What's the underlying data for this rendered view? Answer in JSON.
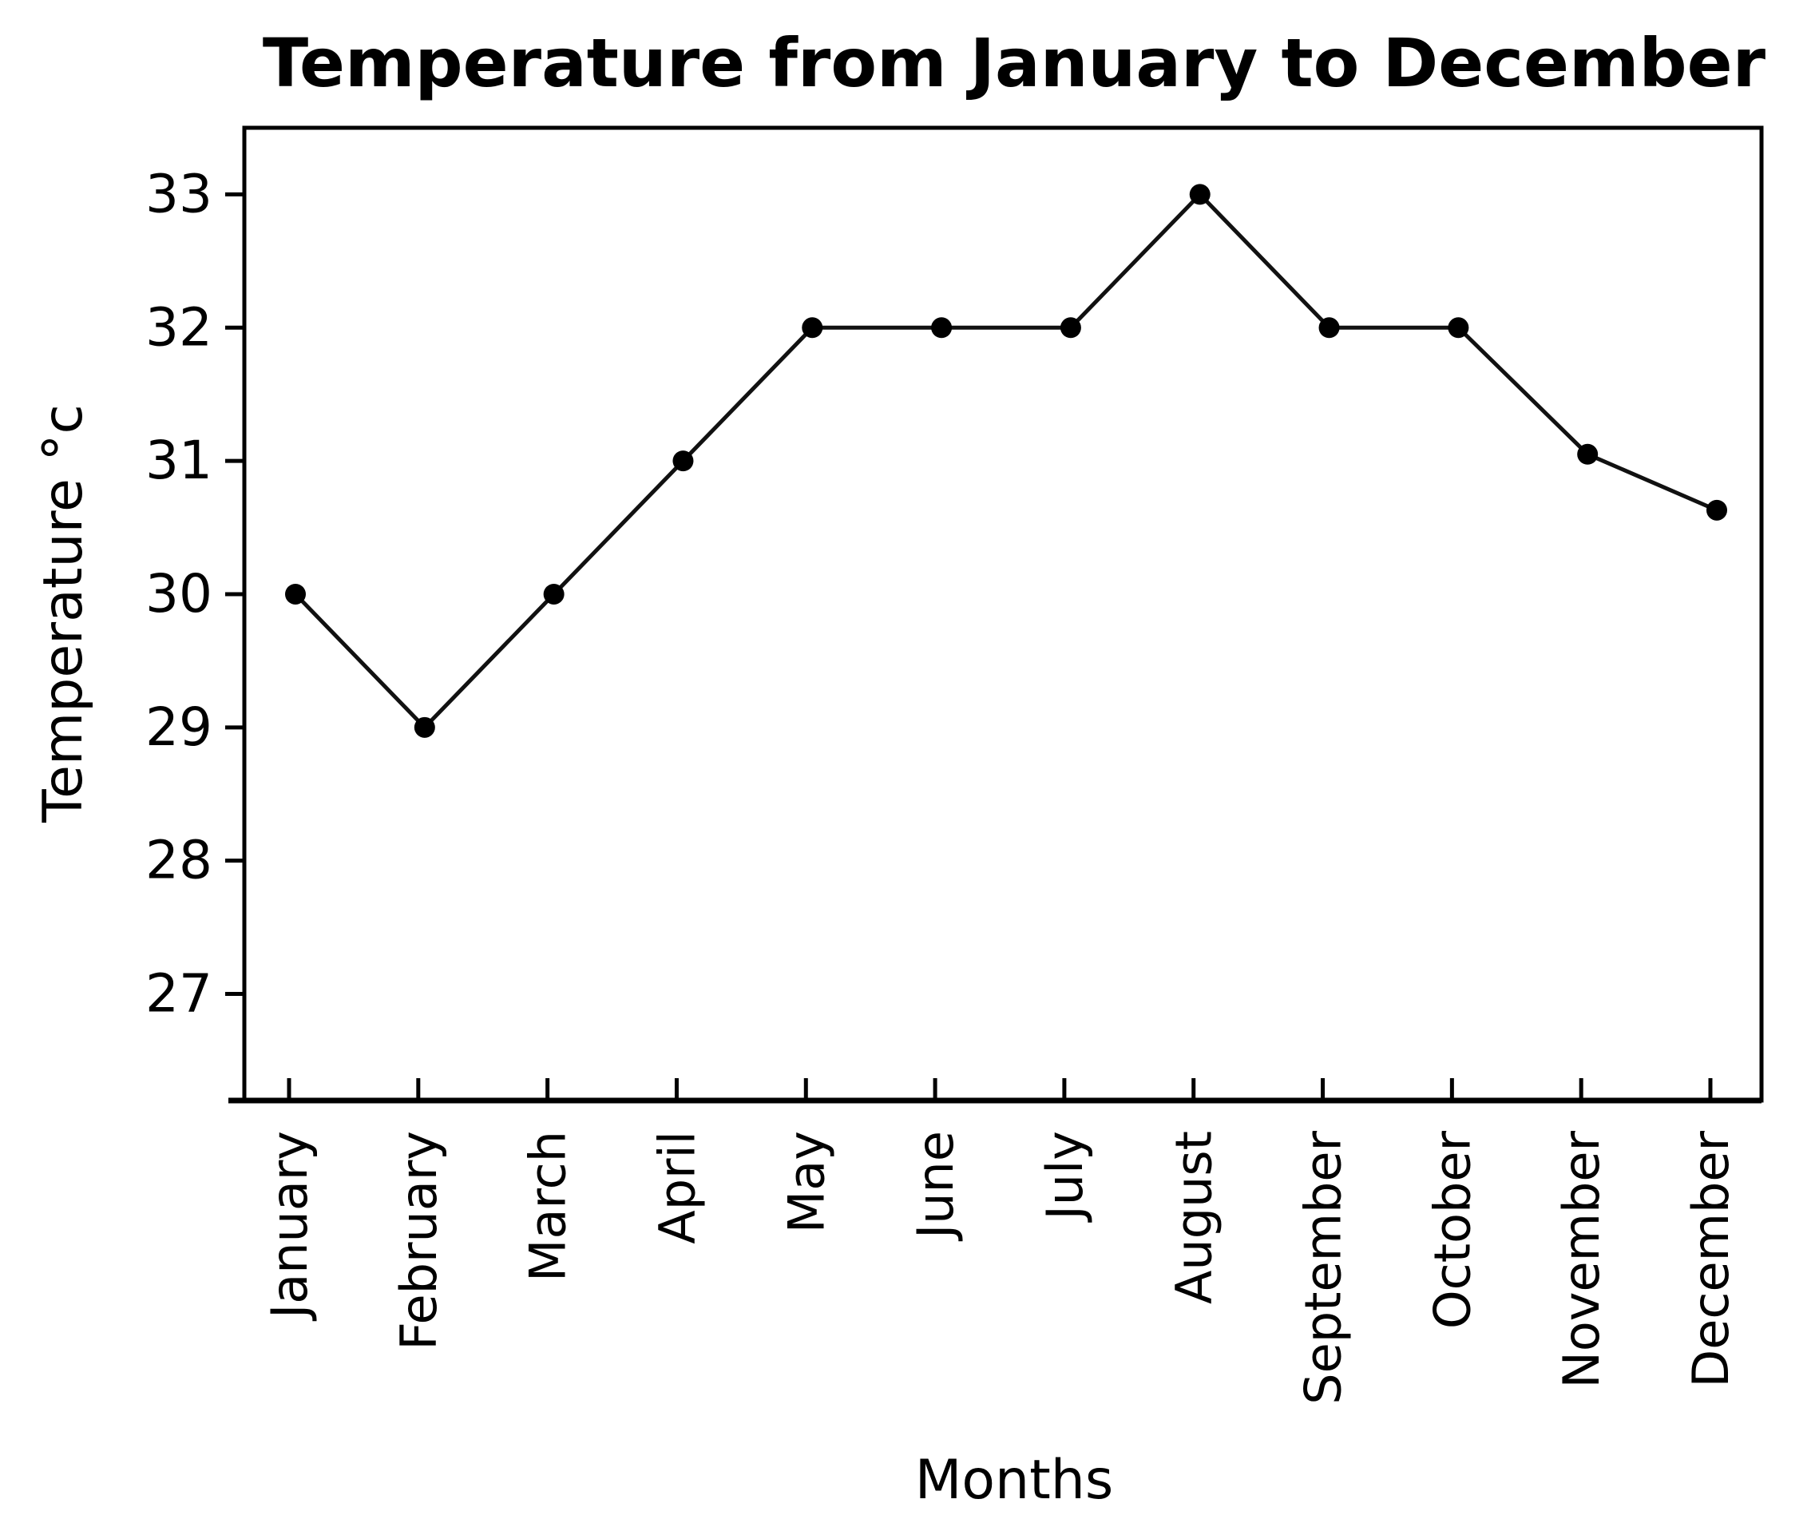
{
  "chart_data": {
    "type": "line",
    "title": "Temperature from January to December",
    "xlabel": "Months",
    "ylabel": "Temperature °c",
    "categories": [
      "January",
      "February",
      "March",
      "April",
      "May",
      "June",
      "July",
      "August",
      "September",
      "October",
      "November",
      "December"
    ],
    "series": [
      {
        "values": [
          30,
          29,
          30,
          31,
          32,
          32,
          32,
          33,
          32,
          32,
          31.05,
          30.63
        ]
      }
    ],
    "yticks": [
      "27",
      "28",
      "29",
      "30",
      "31",
      "32",
      "33"
    ],
    "ylim": [
      26.2,
      33.5
    ],
    "grid": false,
    "legend": "none",
    "colors": {
      "line": "#111111",
      "marker": "#000000",
      "axis": "#000000"
    }
  }
}
